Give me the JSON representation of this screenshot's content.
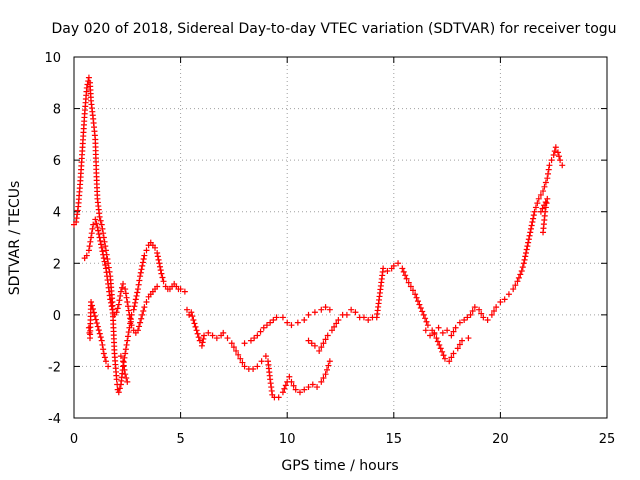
{
  "chart_data": {
    "type": "scatter",
    "title": "Day 020 of 2018, Sidereal Day-to-day VTEC variation (SDTVAR) for receiver togu",
    "xlabel": "GPS time / hours",
    "ylabel": "SDTVAR / TECUs",
    "xlim": [
      0,
      25
    ],
    "ylim": [
      -4,
      10
    ],
    "x_ticks": [
      0,
      5,
      10,
      15,
      20,
      25
    ],
    "y_ticks": [
      -4,
      -2,
      0,
      2,
      4,
      6,
      8,
      10
    ],
    "x_tick_labels": [
      "0",
      "5",
      "10",
      "15",
      "20",
      "25"
    ],
    "y_tick_labels": [
      "-4",
      "-2",
      "0",
      "2",
      "4",
      "6",
      "8",
      "10"
    ],
    "grid": true,
    "marker": "+",
    "marker_color": "#ff0000",
    "series": [
      {
        "name": "togu",
        "points": [
          [
            0.0,
            3.5
          ],
          [
            0.1,
            3.6
          ],
          [
            0.2,
            4.2
          ],
          [
            0.3,
            5.2
          ],
          [
            0.4,
            6.5
          ],
          [
            0.5,
            7.8
          ],
          [
            0.6,
            8.8
          ],
          [
            0.7,
            9.2
          ],
          [
            0.75,
            9.0
          ],
          [
            0.8,
            8.3
          ],
          [
            0.9,
            7.6
          ],
          [
            1.0,
            6.8
          ],
          [
            1.05,
            5.5
          ],
          [
            1.1,
            4.5
          ],
          [
            1.2,
            3.8
          ],
          [
            1.3,
            3.5
          ],
          [
            1.4,
            3.0
          ],
          [
            1.5,
            2.5
          ],
          [
            1.6,
            2.0
          ],
          [
            1.7,
            1.5
          ],
          [
            1.8,
            0.5
          ],
          [
            1.85,
            -0.5
          ],
          [
            1.9,
            -1.5
          ],
          [
            2.0,
            -2.5
          ],
          [
            2.05,
            -2.9
          ],
          [
            2.1,
            -3.0
          ],
          [
            2.2,
            -2.7
          ],
          [
            2.3,
            -2.0
          ],
          [
            2.4,
            -1.5
          ],
          [
            2.5,
            -1.0
          ],
          [
            2.6,
            -0.5
          ],
          [
            2.7,
            0.0
          ],
          [
            2.8,
            0.2
          ],
          [
            2.9,
            0.6
          ],
          [
            3.0,
            1.0
          ],
          [
            3.1,
            1.5
          ],
          [
            3.2,
            1.9
          ],
          [
            3.3,
            2.3
          ],
          [
            3.4,
            2.5
          ],
          [
            3.5,
            2.7
          ],
          [
            3.6,
            2.8
          ],
          [
            3.7,
            2.7
          ],
          [
            3.8,
            2.6
          ],
          [
            3.9,
            2.4
          ],
          [
            4.0,
            2.0
          ],
          [
            4.1,
            1.6
          ],
          [
            4.2,
            1.3
          ],
          [
            4.3,
            1.1
          ],
          [
            4.4,
            1.0
          ],
          [
            4.5,
            1.0
          ],
          [
            4.6,
            1.1
          ],
          [
            4.7,
            1.2
          ],
          [
            4.8,
            1.1
          ],
          [
            4.9,
            1.0
          ],
          [
            5.0,
            1.0
          ],
          [
            5.2,
            0.9
          ],
          [
            0.5,
            2.2
          ],
          [
            0.6,
            2.3
          ],
          [
            0.7,
            2.5
          ],
          [
            0.8,
            3.0
          ],
          [
            0.9,
            3.5
          ],
          [
            1.0,
            3.7
          ],
          [
            1.1,
            3.4
          ],
          [
            1.2,
            3.0
          ],
          [
            1.3,
            2.6
          ],
          [
            1.4,
            2.2
          ],
          [
            1.5,
            1.8
          ],
          [
            1.6,
            1.2
          ],
          [
            1.7,
            0.6
          ],
          [
            1.8,
            0.2
          ],
          [
            1.9,
            0.0
          ],
          [
            2.0,
            0.1
          ],
          [
            2.1,
            0.4
          ],
          [
            2.2,
            0.9
          ],
          [
            2.3,
            1.2
          ],
          [
            2.4,
            1.0
          ],
          [
            2.5,
            0.5
          ],
          [
            2.6,
            0.0
          ],
          [
            2.7,
            -0.4
          ],
          [
            2.8,
            -0.6
          ],
          [
            2.9,
            -0.7
          ],
          [
            3.0,
            -0.6
          ],
          [
            3.1,
            -0.3
          ],
          [
            3.2,
            0.0
          ],
          [
            3.3,
            0.3
          ],
          [
            3.4,
            0.5
          ],
          [
            3.5,
            0.7
          ],
          [
            3.6,
            0.8
          ],
          [
            3.7,
            0.9
          ],
          [
            3.8,
            1.0
          ],
          [
            3.9,
            1.1
          ],
          [
            0.7,
            -0.5
          ],
          [
            0.75,
            -0.9
          ],
          [
            0.8,
            0.5
          ],
          [
            1.3,
            -1.0
          ],
          [
            1.4,
            -1.5
          ],
          [
            1.5,
            -1.8
          ],
          [
            1.6,
            -2.0
          ],
          [
            2.2,
            -1.6
          ],
          [
            2.3,
            -1.8
          ],
          [
            2.4,
            -2.3
          ],
          [
            2.5,
            -2.6
          ],
          [
            5.3,
            0.2
          ],
          [
            5.4,
            0.0
          ],
          [
            5.5,
            0.1
          ],
          [
            5.6,
            -0.2
          ],
          [
            5.9,
            -1.0
          ],
          [
            6.0,
            -1.2
          ],
          [
            6.1,
            -0.8
          ],
          [
            6.3,
            -0.7
          ],
          [
            6.5,
            -0.8
          ],
          [
            6.7,
            -0.9
          ],
          [
            6.9,
            -0.8
          ],
          [
            7.0,
            -0.7
          ],
          [
            7.2,
            -0.9
          ],
          [
            7.4,
            -1.1
          ],
          [
            7.6,
            -1.4
          ],
          [
            7.8,
            -1.7
          ],
          [
            8.0,
            -2.0
          ],
          [
            8.2,
            -2.1
          ],
          [
            8.4,
            -2.1
          ],
          [
            8.6,
            -2.0
          ],
          [
            8.8,
            -1.8
          ],
          [
            9.0,
            -1.6
          ],
          [
            9.1,
            -1.8
          ],
          [
            9.2,
            -2.5
          ],
          [
            9.3,
            -3.1
          ],
          [
            9.4,
            -3.2
          ],
          [
            9.6,
            -3.2
          ],
          [
            9.8,
            -3.0
          ],
          [
            10.0,
            -2.6
          ],
          [
            10.1,
            -2.4
          ],
          [
            10.2,
            -2.6
          ],
          [
            10.4,
            -2.9
          ],
          [
            10.6,
            -3.0
          ],
          [
            10.8,
            -2.9
          ],
          [
            11.0,
            -2.8
          ],
          [
            11.2,
            -2.7
          ],
          [
            11.4,
            -2.8
          ],
          [
            11.6,
            -2.6
          ],
          [
            11.8,
            -2.3
          ],
          [
            12.0,
            -1.8
          ],
          [
            8.0,
            -1.1
          ],
          [
            8.3,
            -1.0
          ],
          [
            8.6,
            -0.8
          ],
          [
            8.9,
            -0.5
          ],
          [
            9.2,
            -0.3
          ],
          [
            9.5,
            -0.1
          ],
          [
            9.8,
            -0.1
          ],
          [
            10.0,
            -0.3
          ],
          [
            10.2,
            -0.4
          ],
          [
            10.5,
            -0.3
          ],
          [
            10.8,
            -0.2
          ],
          [
            11.0,
            0.0
          ],
          [
            11.3,
            0.1
          ],
          [
            11.6,
            0.2
          ],
          [
            11.8,
            0.3
          ],
          [
            12.0,
            0.2
          ],
          [
            11.0,
            -1.0
          ],
          [
            11.3,
            -1.2
          ],
          [
            11.5,
            -1.4
          ],
          [
            11.7,
            -1.1
          ],
          [
            11.9,
            -0.8
          ],
          [
            12.1,
            -0.6
          ],
          [
            12.4,
            -0.2
          ],
          [
            12.6,
            0.0
          ],
          [
            12.8,
            0.0
          ],
          [
            13.0,
            0.2
          ],
          [
            13.2,
            0.1
          ],
          [
            13.4,
            -0.1
          ],
          [
            13.6,
            -0.1
          ],
          [
            13.8,
            -0.2
          ],
          [
            14.0,
            -0.1
          ],
          [
            14.2,
            -0.1
          ],
          [
            14.5,
            1.8
          ],
          [
            14.7,
            1.7
          ],
          [
            14.9,
            1.8
          ],
          [
            15.0,
            1.9
          ],
          [
            15.2,
            2.0
          ],
          [
            15.4,
            1.8
          ],
          [
            15.6,
            1.4
          ],
          [
            15.8,
            1.1
          ],
          [
            16.0,
            0.8
          ],
          [
            16.2,
            0.4
          ],
          [
            16.4,
            0.0
          ],
          [
            16.6,
            -0.4
          ],
          [
            16.8,
            -0.6
          ],
          [
            17.0,
            -0.9
          ],
          [
            17.2,
            -1.3
          ],
          [
            17.4,
            -1.7
          ],
          [
            17.6,
            -1.8
          ],
          [
            17.8,
            -1.5
          ],
          [
            18.0,
            -1.3
          ],
          [
            18.2,
            -1.0
          ],
          [
            18.5,
            -0.9
          ],
          [
            16.5,
            -0.6
          ],
          [
            16.7,
            -0.8
          ],
          [
            16.9,
            -0.7
          ],
          [
            17.1,
            -0.5
          ],
          [
            17.3,
            -0.7
          ],
          [
            17.5,
            -0.6
          ],
          [
            17.7,
            -0.8
          ],
          [
            17.9,
            -0.5
          ],
          [
            18.1,
            -0.3
          ],
          [
            18.3,
            -0.2
          ],
          [
            18.6,
            0.0
          ],
          [
            18.8,
            0.3
          ],
          [
            19.0,
            0.2
          ],
          [
            19.2,
            -0.1
          ],
          [
            19.4,
            -0.2
          ],
          [
            19.6,
            0.0
          ],
          [
            19.8,
            0.3
          ],
          [
            20.0,
            0.5
          ],
          [
            20.2,
            0.6
          ],
          [
            20.4,
            0.8
          ],
          [
            20.6,
            1.0
          ],
          [
            20.8,
            1.3
          ],
          [
            21.0,
            1.7
          ],
          [
            21.1,
            2.0
          ],
          [
            21.2,
            2.4
          ],
          [
            21.3,
            2.8
          ],
          [
            21.4,
            3.2
          ],
          [
            21.5,
            3.6
          ],
          [
            21.6,
            4.0
          ],
          [
            21.8,
            4.5
          ],
          [
            22.0,
            4.8
          ],
          [
            22.2,
            5.3
          ],
          [
            22.3,
            5.8
          ],
          [
            22.4,
            6.0
          ],
          [
            22.5,
            6.2
          ],
          [
            22.6,
            6.5
          ],
          [
            22.7,
            6.3
          ],
          [
            22.8,
            6.0
          ],
          [
            22.9,
            5.8
          ],
          [
            22.0,
            3.2
          ],
          [
            22.1,
            4.0
          ],
          [
            22.2,
            4.5
          ],
          [
            21.9,
            4.0
          ]
        ]
      }
    ]
  }
}
